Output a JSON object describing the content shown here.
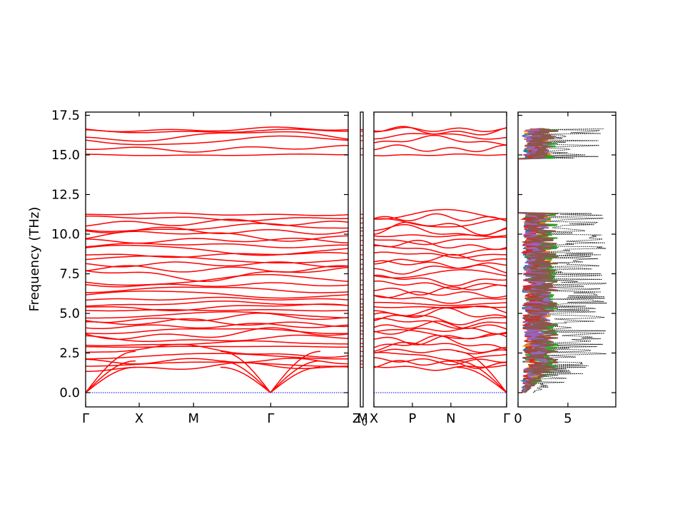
{
  "chart_data": {
    "type": "line",
    "ylabel": "Frequency (THz)",
    "ylim": [
      -0.9,
      17.6
    ],
    "y_ticks": [
      "0.0",
      "2.5",
      "5.0",
      "7.5",
      "10.0",
      "12.5",
      "15.0",
      "17.5"
    ],
    "y_tick_values": [
      0,
      2.5,
      5.0,
      7.5,
      10.0,
      12.5,
      15.0,
      17.5
    ],
    "band_color": "#ff0000",
    "zero_line_color": "#0000ff",
    "panels": [
      {
        "name": "band-panel-1",
        "x_ticks": [
          "Γ",
          "X",
          "M",
          "Γ",
          "Z"
        ],
        "x_tick_values": [
          0.0,
          0.204,
          0.411,
          0.705,
          1.0
        ],
        "segment_breaks": [
          0.705
        ]
      },
      {
        "name": "band-panel-2",
        "x_ticks": [
          "Z",
          "M"
        ],
        "x_tick_values": [
          0.0,
          1.0
        ]
      },
      {
        "name": "band-panel-3",
        "x_ticks": [
          "X",
          "P",
          "N",
          "Γ"
        ],
        "x_tick_values": [
          0.0,
          0.29,
          0.58,
          1.0
        ]
      }
    ],
    "dos_panel": {
      "x_ticks": [
        "0",
        "5"
      ],
      "x_tick_values": [
        0,
        5
      ],
      "xlim": [
        0,
        9.8
      ],
      "total_color": "#000000",
      "projected_colors": [
        "#1f77b4",
        "#ff7f0e",
        "#2ca02c",
        "#d62728",
        "#9467bd",
        "#8c564b"
      ]
    },
    "overlap_tick_label": "Z",
    "stray_tick_label": "0"
  }
}
